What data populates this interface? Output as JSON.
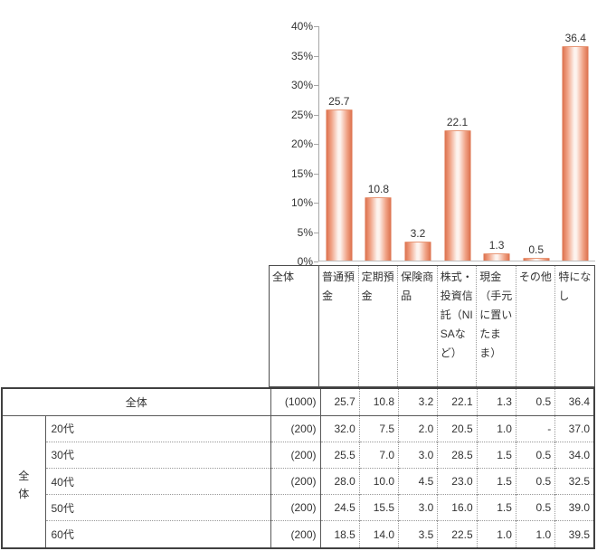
{
  "colors": {
    "bar_edge": "#db6e4a",
    "bar_mid": "#f0a184",
    "bar_center": "#fdf3ee",
    "axis": "#a6a6a6",
    "table_border_dark": "#404040",
    "table_border": "#595959",
    "table_border_dotted": "#999999",
    "text": "#333333"
  },
  "chart_data": {
    "type": "bar",
    "title": "",
    "categories": [
      "普通預金",
      "定期預金",
      "保険商品",
      "株式・投資信託（NISAなど）",
      "現金（手元に置いたまま）",
      "その他",
      "特になし"
    ],
    "values": [
      25.7,
      10.8,
      3.2,
      22.1,
      1.3,
      0.5,
      36.4
    ],
    "value_labels": [
      "25.7",
      "10.8",
      "3.2",
      "22.1",
      "1.3",
      "0.5",
      "36.4"
    ],
    "ylim": [
      0,
      40
    ],
    "ytick_step_percent": 5,
    "ytick_labels": [
      "40%",
      "35%",
      "30%",
      "25%",
      "20%",
      "15%",
      "10%",
      "5%",
      "0%"
    ],
    "grid": false,
    "legend": "none"
  },
  "table": {
    "corner_label": "全体",
    "column_headers": [
      "普通預金",
      "定期預金",
      "保険商品",
      "株式・投資信託（NISAなど）",
      "現金（手元に置いたまま）",
      "その他",
      "特になし"
    ],
    "rows": [
      {
        "group": "",
        "label": "全体",
        "n": "(1000)",
        "values": [
          "25.7",
          "10.8",
          "3.2",
          "22.1",
          "1.3",
          "0.5",
          "36.4"
        ]
      },
      {
        "group": "全体",
        "label": "20代",
        "n": "(200)",
        "values": [
          "32.0",
          "7.5",
          "2.0",
          "20.5",
          "1.0",
          "-",
          "37.0"
        ]
      },
      {
        "group": "全体",
        "label": "30代",
        "n": "(200)",
        "values": [
          "25.5",
          "7.0",
          "3.0",
          "28.5",
          "1.5",
          "0.5",
          "34.0"
        ]
      },
      {
        "group": "全体",
        "label": "40代",
        "n": "(200)",
        "values": [
          "28.0",
          "10.0",
          "4.5",
          "23.0",
          "1.5",
          "0.5",
          "32.5"
        ]
      },
      {
        "group": "全体",
        "label": "50代",
        "n": "(200)",
        "values": [
          "24.5",
          "15.5",
          "3.0",
          "16.0",
          "1.5",
          "0.5",
          "39.0"
        ]
      },
      {
        "group": "全体",
        "label": "60代",
        "n": "(200)",
        "values": [
          "18.5",
          "14.0",
          "3.5",
          "22.5",
          "1.0",
          "1.0",
          "39.5"
        ]
      }
    ]
  }
}
